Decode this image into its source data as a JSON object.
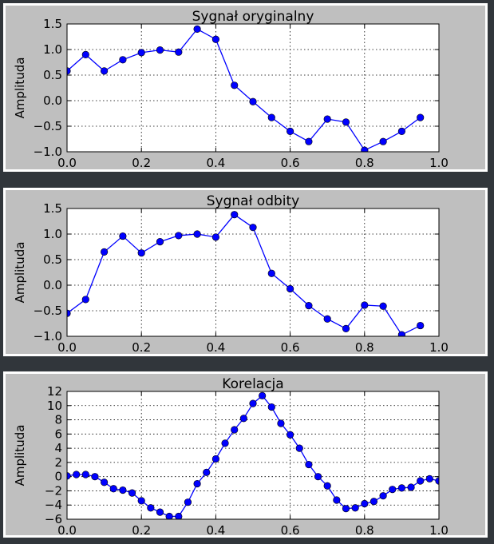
{
  "chart_data": [
    {
      "type": "line",
      "title": "Sygnał oryginalny",
      "xlabel": "",
      "ylabel": "Amplituda",
      "xlim": [
        0,
        1.0
      ],
      "ylim": [
        -1.0,
        1.5
      ],
      "xticks": [
        "0.0",
        "0.2",
        "0.4",
        "0.6",
        "0.8",
        "1.0"
      ],
      "yticks": [
        "1.5",
        "1.0",
        "0.5",
        "0.0",
        "−0.5",
        "−1.0"
      ],
      "grid": true,
      "color": "#0000ff",
      "x": [
        0.0,
        0.05,
        0.1,
        0.15,
        0.2,
        0.25,
        0.3,
        0.35,
        0.4,
        0.45,
        0.5,
        0.55,
        0.6,
        0.65,
        0.7,
        0.75,
        0.8,
        0.85,
        0.9,
        0.95
      ],
      "values": [
        0.58,
        0.9,
        0.58,
        0.8,
        0.94,
        0.99,
        0.95,
        1.4,
        1.2,
        0.3,
        -0.02,
        -0.33,
        -0.6,
        -0.8,
        -0.36,
        -0.42,
        -0.97,
        -0.8,
        -0.6,
        -0.33
      ]
    },
    {
      "type": "line",
      "title": "Sygnał odbity",
      "xlabel": "",
      "ylabel": "Amplituda",
      "xlim": [
        0,
        1.0
      ],
      "ylim": [
        -1.0,
        1.5
      ],
      "xticks": [
        "0.0",
        "0.2",
        "0.4",
        "0.6",
        "0.8",
        "1.0"
      ],
      "yticks": [
        "1.5",
        "1.0",
        "0.5",
        "0.0",
        "−0.5",
        "−1.0"
      ],
      "grid": true,
      "color": "#0000ff",
      "x": [
        0.0,
        0.05,
        0.1,
        0.15,
        0.2,
        0.25,
        0.3,
        0.35,
        0.4,
        0.45,
        0.5,
        0.55,
        0.6,
        0.65,
        0.7,
        0.75,
        0.8,
        0.85,
        0.9,
        0.95
      ],
      "values": [
        -0.55,
        -0.28,
        0.65,
        0.96,
        0.63,
        0.85,
        0.97,
        1.0,
        0.94,
        1.38,
        1.13,
        0.23,
        -0.07,
        -0.4,
        -0.66,
        -0.85,
        -0.39,
        -0.41,
        -0.97,
        -0.79
      ]
    },
    {
      "type": "line",
      "title": "Korelacja",
      "xlabel": "",
      "ylabel": "Amplituda",
      "xlim": [
        0,
        1.0
      ],
      "ylim": [
        -6,
        12
      ],
      "xticks": [
        "0.0",
        "0.2",
        "0.4",
        "0.6",
        "0.8",
        "1.0"
      ],
      "yticks": [
        "12",
        "10",
        "8",
        "6",
        "4",
        "2",
        "0",
        "−2",
        "−4",
        "−6"
      ],
      "grid": true,
      "color": "#0000ff",
      "x": [
        0.0,
        0.025,
        0.05,
        0.075,
        0.1,
        0.125,
        0.15,
        0.175,
        0.2,
        0.225,
        0.25,
        0.275,
        0.3,
        0.325,
        0.35,
        0.375,
        0.4,
        0.425,
        0.45,
        0.475,
        0.5,
        0.525,
        0.55,
        0.575,
        0.6,
        0.625,
        0.65,
        0.675,
        0.7,
        0.725,
        0.75,
        0.775,
        0.8,
        0.825,
        0.85,
        0.875,
        0.9,
        0.925,
        0.95,
        0.975,
        1.0
      ],
      "values": [
        0.1,
        0.3,
        0.3,
        0.0,
        -0.8,
        -1.7,
        -1.9,
        -2.3,
        -3.4,
        -4.4,
        -5.0,
        -5.6,
        -5.6,
        -3.6,
        -1.0,
        0.6,
        2.5,
        4.7,
        6.6,
        8.2,
        10.3,
        11.4,
        9.8,
        7.5,
        5.9,
        4.0,
        1.7,
        0.0,
        -1.3,
        -3.3,
        -4.5,
        -4.4,
        -3.8,
        -3.5,
        -2.7,
        -1.8,
        -1.6,
        -1.5,
        -0.6,
        -0.3,
        -0.6
      ]
    }
  ]
}
